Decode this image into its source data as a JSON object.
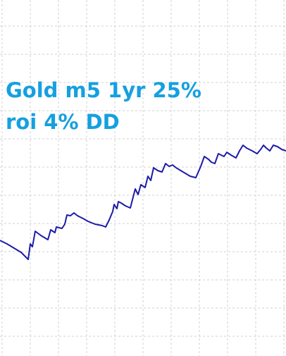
{
  "chart_data": {
    "type": "line",
    "annotations": [
      "Gold m5 1yr 25%",
      "roi 4% DD"
    ],
    "x": [
      0,
      10,
      20,
      30,
      38,
      40,
      43,
      46,
      50,
      58,
      68,
      72,
      78,
      80,
      88,
      92,
      95,
      100,
      105,
      110,
      118,
      125,
      135,
      145,
      150,
      155,
      160,
      162,
      166,
      168,
      172,
      178,
      185,
      192,
      196,
      200,
      206,
      210,
      214,
      218,
      224,
      230,
      235,
      240,
      245,
      250,
      260,
      270,
      278,
      285,
      290,
      296,
      300,
      305,
      310,
      318,
      322,
      328,
      335,
      340,
      345,
      350,
      358,
      365,
      370,
      374,
      378,
      383,
      388,
      394,
      400,
      406
    ],
    "values": [
      164,
      159,
      153,
      147,
      139,
      137,
      159,
      155,
      177,
      171,
      165,
      179,
      175,
      183,
      181,
      187,
      200,
      199,
      203,
      199,
      195,
      191,
      187,
      185,
      183,
      193,
      205,
      215,
      209,
      219,
      217,
      213,
      210,
      237,
      229,
      243,
      239,
      255,
      249,
      267,
      263,
      261,
      273,
      269,
      271,
      267,
      261,
      255,
      253,
      269,
      283,
      279,
      275,
      273,
      287,
      283,
      289,
      285,
      281,
      291,
      299,
      295,
      291,
      287,
      293,
      299,
      295,
      291,
      299,
      297,
      293,
      291
    ],
    "color": "#1c1ca8",
    "xlim": [
      0,
      406
    ],
    "ylim": [
      0,
      505
    ],
    "xticks": [
      3,
      43,
      83,
      123,
      163,
      203,
      243,
      283,
      323,
      363,
      403
    ],
    "yticks": [
      28,
      68,
      108,
      148,
      188,
      228,
      268,
      308,
      348,
      388,
      428,
      468
    ],
    "grid": true
  }
}
